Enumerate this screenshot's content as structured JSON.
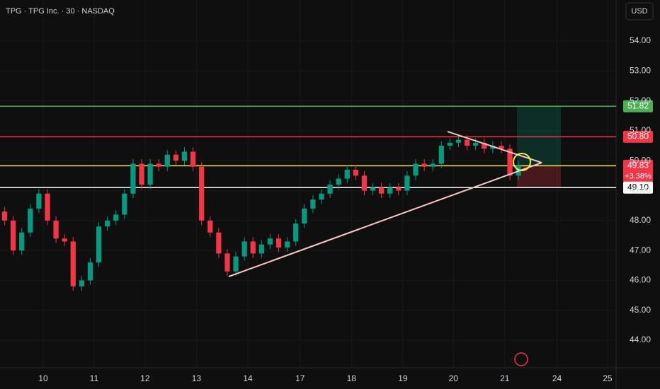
{
  "header": {
    "title": "TPG · TPG Inc. · 30 · NASDAQ",
    "currency": "USD"
  },
  "chart_data": {
    "type": "candlestick",
    "x": [
      0,
      1,
      2,
      3,
      4,
      5,
      6,
      7,
      8,
      9,
      10,
      11,
      12,
      13,
      14,
      15,
      16,
      17,
      18,
      19,
      20,
      21,
      22,
      23,
      24,
      25,
      26,
      27,
      28,
      29,
      30,
      31,
      32,
      33,
      34,
      35,
      36,
      37,
      38,
      39,
      40,
      41,
      42,
      43,
      44,
      45,
      46,
      47,
      48,
      49,
      50,
      51,
      52,
      53,
      54,
      55,
      56,
      57,
      58,
      59,
      60
    ],
    "open": [
      48.3,
      48.0,
      47.0,
      47.6,
      48.4,
      48.9,
      48.0,
      47.4,
      47.3,
      45.8,
      46.0,
      46.6,
      47.8,
      48.0,
      48.2,
      48.9,
      49.9,
      49.2,
      49.9,
      49.8,
      50.2,
      50.0,
      50.3,
      49.8,
      48.0,
      47.6,
      46.9,
      46.3,
      46.8,
      47.3,
      46.9,
      47.2,
      47.4,
      47.1,
      47.3,
      47.9,
      48.4,
      48.7,
      48.9,
      49.2,
      49.4,
      49.7,
      49.5,
      49.0,
      49.1,
      48.9,
      49.1,
      49.0,
      49.5,
      49.9,
      49.8,
      49.9,
      50.5,
      50.6,
      50.7,
      50.5,
      50.6,
      50.4,
      50.5,
      50.4,
      49.5
    ],
    "high": [
      48.45,
      48.15,
      47.75,
      48.55,
      49.05,
      49.05,
      48.15,
      47.55,
      47.45,
      46.15,
      46.75,
      47.95,
      48.15,
      48.35,
      49.05,
      50.05,
      50.05,
      50.05,
      50.05,
      50.35,
      50.35,
      50.45,
      50.45,
      49.95,
      48.15,
      47.75,
      47.05,
      46.95,
      47.45,
      47.45,
      47.35,
      47.55,
      47.55,
      47.45,
      48.05,
      48.55,
      48.85,
      49.05,
      49.35,
      49.55,
      49.85,
      49.85,
      49.65,
      49.25,
      49.25,
      49.25,
      49.25,
      49.65,
      50.05,
      50.05,
      50.05,
      50.65,
      50.75,
      50.85,
      50.85,
      50.75,
      50.75,
      50.65,
      50.65,
      50.55,
      49.98
    ],
    "low": [
      47.85,
      46.85,
      46.85,
      47.45,
      48.25,
      47.85,
      47.25,
      47.15,
      45.65,
      45.65,
      45.85,
      46.45,
      47.65,
      47.85,
      48.05,
      48.75,
      49.05,
      49.05,
      49.65,
      49.65,
      49.85,
      49.85,
      49.65,
      47.85,
      47.45,
      46.75,
      46.15,
      46.15,
      46.65,
      46.75,
      46.75,
      47.05,
      46.95,
      46.95,
      47.15,
      47.75,
      48.25,
      48.55,
      48.75,
      49.05,
      49.25,
      49.35,
      48.85,
      48.85,
      48.75,
      48.75,
      48.85,
      48.85,
      49.35,
      49.65,
      49.65,
      49.75,
      50.35,
      50.45,
      50.35,
      50.35,
      50.25,
      50.25,
      50.25,
      49.35,
      49.35
    ],
    "close": [
      48.0,
      47.0,
      47.6,
      48.4,
      48.9,
      48.0,
      47.4,
      47.3,
      45.8,
      46.0,
      46.6,
      47.8,
      48.0,
      48.2,
      48.9,
      49.9,
      49.2,
      49.9,
      49.8,
      50.2,
      50.0,
      50.3,
      49.8,
      48.0,
      47.6,
      46.9,
      46.3,
      46.8,
      47.3,
      46.9,
      47.2,
      47.4,
      47.1,
      47.3,
      47.9,
      48.4,
      48.7,
      48.9,
      49.2,
      49.4,
      49.7,
      49.5,
      49.0,
      49.1,
      48.9,
      49.1,
      49.0,
      49.5,
      49.9,
      49.8,
      49.9,
      50.5,
      50.6,
      50.7,
      50.5,
      50.6,
      50.4,
      50.5,
      50.4,
      49.5,
      49.83
    ],
    "up_color": "#089981",
    "down_color": "#f23645",
    "xlim": [
      -0.54,
      71.4
    ],
    "xticks": [
      {
        "value": 4.5,
        "label": "10"
      },
      {
        "value": 10.45,
        "label": "11"
      },
      {
        "value": 16.4,
        "label": "12"
      },
      {
        "value": 22.4,
        "label": "13"
      },
      {
        "value": 28.4,
        "label": "14"
      },
      {
        "value": 34.5,
        "label": "17"
      },
      {
        "value": 40.5,
        "label": "18"
      },
      {
        "value": 46.5,
        "label": "19"
      },
      {
        "value": 52.4,
        "label": "20"
      },
      {
        "value": 58.4,
        "label": "21"
      },
      {
        "value": 64.5,
        "label": "24"
      },
      {
        "value": 70.4,
        "label": "25"
      }
    ],
    "ylim": [
      43.08,
      55.37
    ],
    "yticks": [
      {
        "value": 44,
        "label": "44.00"
      },
      {
        "value": 45,
        "label": "45.00"
      },
      {
        "value": 46,
        "label": "46.00"
      },
      {
        "value": 47,
        "label": "47.00"
      },
      {
        "value": 48,
        "label": "48.00"
      },
      {
        "value": 49,
        "label": "49.00"
      },
      {
        "value": 50,
        "label": "50.00"
      },
      {
        "value": 51,
        "label": "51.00"
      },
      {
        "value": 52,
        "label": "52.00"
      },
      {
        "value": 53,
        "label": "53.00"
      },
      {
        "value": 54,
        "label": "54.00"
      }
    ],
    "levels": [
      {
        "value": 51.82,
        "color": "#4caf50"
      },
      {
        "value": 50.8,
        "value_label": "50.80",
        "color": "#f23645"
      },
      {
        "value": 49.83,
        "color": "#f2e94e"
      },
      {
        "value": 49.1,
        "value_label": "49.10",
        "color": "#ffffff"
      }
    ],
    "last_change": {
      "value": 3.38,
      "label": "+3.38%"
    }
  }
}
